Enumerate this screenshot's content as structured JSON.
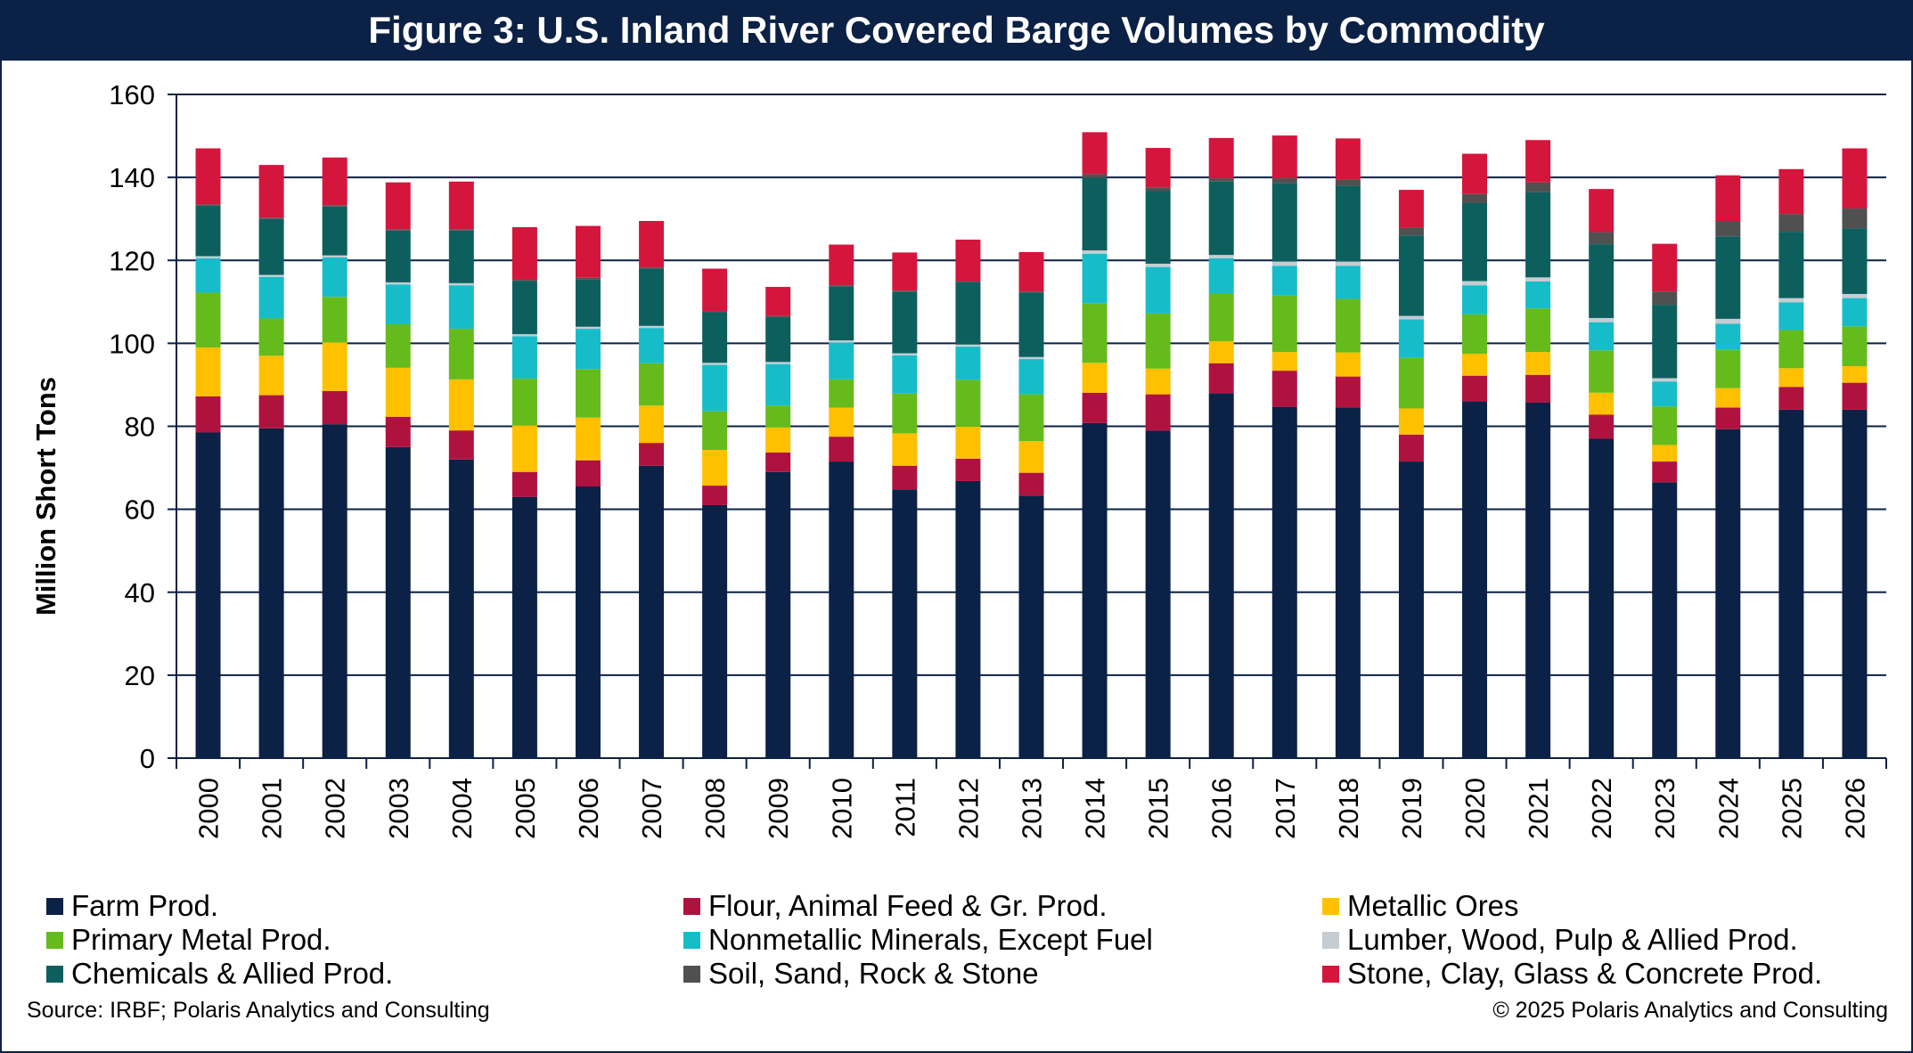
{
  "title": "Figure 3: U.S. Inland River Covered Barge Volumes by Commodity",
  "source_note": "Source: IRBF; Polaris Analytics and Consulting",
  "copyright_note": "© 2025 Polaris Analytics and Consulting",
  "chart_data": {
    "type": "bar",
    "stacked": true,
    "title": "Figure 3: U.S. Inland River Covered Barge Volumes by Commodity",
    "xlabel": "",
    "ylabel": "Million Short Tons",
    "ylim": [
      0,
      160
    ],
    "yticks": [
      0,
      20,
      40,
      60,
      80,
      100,
      120,
      140,
      160
    ],
    "grid": true,
    "legend_position": "bottom",
    "categories": [
      "2000",
      "2001",
      "2002",
      "2003",
      "2004",
      "2005",
      "2006",
      "2007",
      "2008",
      "2009",
      "2010",
      "2011",
      "2012",
      "2013",
      "2014",
      "2015",
      "2016",
      "2017",
      "2018",
      "2019",
      "2020",
      "2021",
      "2022",
      "2023",
      "2024",
      "2025",
      "2026"
    ],
    "series": [
      {
        "name": "Farm Prod.",
        "color": "#0b2145",
        "values": [
          78.5,
          79.5,
          80.5,
          75,
          72,
          63,
          65.5,
          70.5,
          61,
          69,
          71.5,
          64.8,
          66.8,
          63.3,
          80.8,
          79,
          88,
          84.7,
          84.5,
          71.5,
          86,
          85.7,
          77,
          66.5,
          79.3,
          84,
          84
        ]
      },
      {
        "name": "Flour, Animal Feed & Gr. Prod.",
        "color": "#b0123f",
        "values": [
          8.7,
          8,
          8,
          7.3,
          7,
          6,
          6.3,
          5.5,
          4.7,
          4.7,
          6,
          5.7,
          5.4,
          5.5,
          7.3,
          8.7,
          7.2,
          8.7,
          7.5,
          6.5,
          6.2,
          6.7,
          5.8,
          5,
          5.2,
          5.5,
          6.5
        ]
      },
      {
        "name": "Metallic Ores",
        "color": "#ffc000",
        "values": [
          11.8,
          9.5,
          11.7,
          11.8,
          12.3,
          11.2,
          10.3,
          9,
          8.6,
          6,
          7,
          7.8,
          7.7,
          7.6,
          7.2,
          6.2,
          5.3,
          4.5,
          5.8,
          6.3,
          5.3,
          5.5,
          5.3,
          4,
          4.7,
          4.5,
          4
        ]
      },
      {
        "name": "Primary Metal Prod.",
        "color": "#65bb1c",
        "values": [
          13.2,
          9,
          11,
          10.5,
          12.2,
          11.3,
          11.7,
          10.2,
          9.3,
          5.3,
          6.8,
          9.6,
          11.3,
          11.3,
          14.3,
          13.3,
          11.5,
          13.6,
          12.9,
          12.2,
          9.5,
          10.5,
          10.2,
          9.3,
          9.2,
          9.2,
          9.6
        ]
      },
      {
        "name": "Nonmetallic Minerals, Except Fuel",
        "color": "#17bcc9",
        "values": [
          8.3,
          10,
          9.5,
          9.6,
          10.5,
          10.2,
          9.7,
          8.5,
          11.2,
          10,
          8.9,
          9.2,
          8,
          8.5,
          12,
          11.2,
          8.5,
          7.2,
          8,
          9.3,
          7,
          6.5,
          6.8,
          6,
          6.3,
          6.7,
          6.8
        ]
      },
      {
        "name": "Lumber, Wood, Pulp & Allied Prod.",
        "color": "#c5ccd2",
        "values": [
          0.5,
          0.5,
          0.5,
          0.5,
          0.5,
          0.5,
          0.5,
          0.5,
          0.5,
          0.5,
          0.5,
          0.5,
          0.5,
          0.5,
          0.8,
          0.8,
          0.8,
          1,
          1,
          0.8,
          1,
          1,
          1,
          0.8,
          1.2,
          1,
          1
        ]
      },
      {
        "name": "Chemicals & Allied Prod.",
        "color": "#0d5f5e",
        "values": [
          12.2,
          13.5,
          11.8,
          12.5,
          12.7,
          12.8,
          11.5,
          13.8,
          12.2,
          10.8,
          13,
          14.8,
          15,
          15.5,
          17.5,
          17.5,
          17.7,
          19,
          18.3,
          19.4,
          18.8,
          20.5,
          17.8,
          17.7,
          19.9,
          16,
          15.8
        ]
      },
      {
        "name": "Soil, Sand, Rock & Stone",
        "color": "#505050",
        "values": [
          0.3,
          0.3,
          0.3,
          0.3,
          0.3,
          0.3,
          0.3,
          0.3,
          0.3,
          0.3,
          0.3,
          0.3,
          0.3,
          0.3,
          0.9,
          0.9,
          0.8,
          1.1,
          1.4,
          1.8,
          2.2,
          2.4,
          2.9,
          3.2,
          3.7,
          4.3,
          4.8
        ]
      },
      {
        "name": "Stone, Clay, Glass & Concrete Prod.",
        "color": "#d4163c",
        "values": [
          13.5,
          12.7,
          11.5,
          11.3,
          11.5,
          12.7,
          12.5,
          11.2,
          10.2,
          7,
          9.8,
          9.2,
          10,
          9.5,
          10.1,
          9.5,
          9.7,
          10.3,
          10,
          9.2,
          9.7,
          10.2,
          10.4,
          11.5,
          11,
          10.8,
          14.5
        ]
      }
    ]
  }
}
